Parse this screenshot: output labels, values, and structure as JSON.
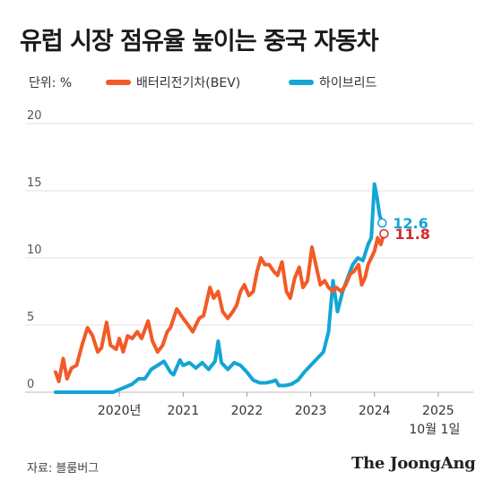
{
  "title": "유럽 시장 점유율 높이는 중국 자동차",
  "unit_label": "단위: %",
  "source": "자료: 블룸버그",
  "logo": "The JoongAng",
  "chart_data": {
    "type": "line",
    "ylim": [
      0,
      20
    ],
    "yticks": [
      "0",
      "5",
      "10",
      "15",
      "20"
    ],
    "xlim": [
      2019.0,
      2025.55
    ],
    "xticks": [
      {
        "x": 2020.0,
        "label": "2020년"
      },
      {
        "x": 2021.0,
        "label": "2021"
      },
      {
        "x": 2022.0,
        "label": "2022"
      },
      {
        "x": 2023.0,
        "label": "2023"
      },
      {
        "x": 2024.0,
        "label": "2024"
      },
      {
        "x": 2025.0,
        "label": "2025"
      }
    ],
    "end_date_label": "10월 1일",
    "grid": true,
    "legend": "top",
    "series": [
      {
        "name": "배터리전기차(BEV)",
        "color": "#f25a27",
        "end_label": "11.8",
        "end_label_color": "#d62a2a",
        "points": [
          [
            2019.0,
            1.5
          ],
          [
            2019.05,
            0.8
          ],
          [
            2019.12,
            2.5
          ],
          [
            2019.18,
            1.0
          ],
          [
            2019.25,
            1.8
          ],
          [
            2019.33,
            2.0
          ],
          [
            2019.42,
            3.6
          ],
          [
            2019.5,
            4.8
          ],
          [
            2019.58,
            4.2
          ],
          [
            2019.66,
            3.0
          ],
          [
            2019.72,
            3.3
          ],
          [
            2019.8,
            5.2
          ],
          [
            2019.86,
            3.5
          ],
          [
            2019.95,
            3.2
          ],
          [
            2020.0,
            4.0
          ],
          [
            2020.06,
            3.0
          ],
          [
            2020.13,
            4.2
          ],
          [
            2020.2,
            4.0
          ],
          [
            2020.28,
            4.5
          ],
          [
            2020.35,
            4.0
          ],
          [
            2020.45,
            5.3
          ],
          [
            2020.52,
            3.8
          ],
          [
            2020.6,
            3.0
          ],
          [
            2020.68,
            3.5
          ],
          [
            2020.75,
            4.5
          ],
          [
            2020.8,
            4.8
          ],
          [
            2020.9,
            6.2
          ],
          [
            2021.0,
            5.5
          ],
          [
            2021.08,
            5.0
          ],
          [
            2021.15,
            4.5
          ],
          [
            2021.25,
            5.5
          ],
          [
            2021.32,
            5.7
          ],
          [
            2021.42,
            7.8
          ],
          [
            2021.48,
            7.0
          ],
          [
            2021.55,
            7.5
          ],
          [
            2021.62,
            6.0
          ],
          [
            2021.7,
            5.5
          ],
          [
            2021.78,
            6.0
          ],
          [
            2021.84,
            6.5
          ],
          [
            2021.9,
            7.5
          ],
          [
            2021.96,
            8.0
          ],
          [
            2022.03,
            7.2
          ],
          [
            2022.1,
            7.5
          ],
          [
            2022.16,
            9.0
          ],
          [
            2022.22,
            10.0
          ],
          [
            2022.28,
            9.5
          ],
          [
            2022.35,
            9.5
          ],
          [
            2022.42,
            9.0
          ],
          [
            2022.48,
            8.7
          ],
          [
            2022.55,
            9.7
          ],
          [
            2022.62,
            7.5
          ],
          [
            2022.68,
            7.0
          ],
          [
            2022.75,
            8.5
          ],
          [
            2022.82,
            9.3
          ],
          [
            2022.88,
            7.8
          ],
          [
            2022.95,
            8.3
          ],
          [
            2023.02,
            10.8
          ],
          [
            2023.08,
            9.5
          ],
          [
            2023.15,
            8.0
          ],
          [
            2023.22,
            8.3
          ],
          [
            2023.28,
            7.8
          ],
          [
            2023.35,
            7.5
          ],
          [
            2023.4,
            7.8
          ],
          [
            2023.48,
            7.5
          ],
          [
            2023.55,
            8.0
          ],
          [
            2023.62,
            8.8
          ],
          [
            2023.68,
            9.0
          ],
          [
            2023.75,
            9.5
          ],
          [
            2023.8,
            8.0
          ],
          [
            2023.85,
            8.5
          ],
          [
            2023.9,
            9.5
          ],
          [
            2023.95,
            10.0
          ],
          [
            2024.0,
            10.5
          ],
          [
            2024.05,
            11.5
          ],
          [
            2024.1,
            11.0
          ],
          [
            2024.15,
            11.8
          ]
        ]
      },
      {
        "name": "하이브리드",
        "color": "#14a5d6",
        "end_label": "12.6",
        "end_label_color": "#14a5d6",
        "points": [
          [
            2019.0,
            0.0
          ],
          [
            2019.5,
            0.0
          ],
          [
            2019.9,
            0.0
          ],
          [
            2020.0,
            0.2
          ],
          [
            2020.1,
            0.4
          ],
          [
            2020.2,
            0.6
          ],
          [
            2020.3,
            1.0
          ],
          [
            2020.4,
            1.0
          ],
          [
            2020.5,
            1.7
          ],
          [
            2020.6,
            2.0
          ],
          [
            2020.7,
            2.3
          ],
          [
            2020.8,
            1.5
          ],
          [
            2020.85,
            1.3
          ],
          [
            2020.95,
            2.4
          ],
          [
            2021.0,
            2.0
          ],
          [
            2021.1,
            2.2
          ],
          [
            2021.2,
            1.8
          ],
          [
            2021.3,
            2.2
          ],
          [
            2021.4,
            1.7
          ],
          [
            2021.5,
            2.3
          ],
          [
            2021.55,
            3.8
          ],
          [
            2021.6,
            2.2
          ],
          [
            2021.7,
            1.7
          ],
          [
            2021.8,
            2.2
          ],
          [
            2021.9,
            2.0
          ],
          [
            2022.0,
            1.5
          ],
          [
            2022.1,
            0.9
          ],
          [
            2022.2,
            0.7
          ],
          [
            2022.3,
            0.7
          ],
          [
            2022.4,
            0.8
          ],
          [
            2022.45,
            0.9
          ],
          [
            2022.5,
            0.5
          ],
          [
            2022.6,
            0.5
          ],
          [
            2022.7,
            0.6
          ],
          [
            2022.8,
            0.9
          ],
          [
            2022.9,
            1.5
          ],
          [
            2023.0,
            2.0
          ],
          [
            2023.1,
            2.5
          ],
          [
            2023.2,
            3.0
          ],
          [
            2023.28,
            4.5
          ],
          [
            2023.35,
            8.3
          ],
          [
            2023.42,
            6.0
          ],
          [
            2023.5,
            7.5
          ],
          [
            2023.58,
            8.5
          ],
          [
            2023.66,
            9.5
          ],
          [
            2023.74,
            10.0
          ],
          [
            2023.82,
            9.8
          ],
          [
            2023.9,
            11.0
          ],
          [
            2023.95,
            11.5
          ],
          [
            2024.0,
            15.5
          ],
          [
            2024.04,
            14.5
          ],
          [
            2024.08,
            13.2
          ],
          [
            2024.12,
            12.6
          ]
        ]
      }
    ]
  }
}
